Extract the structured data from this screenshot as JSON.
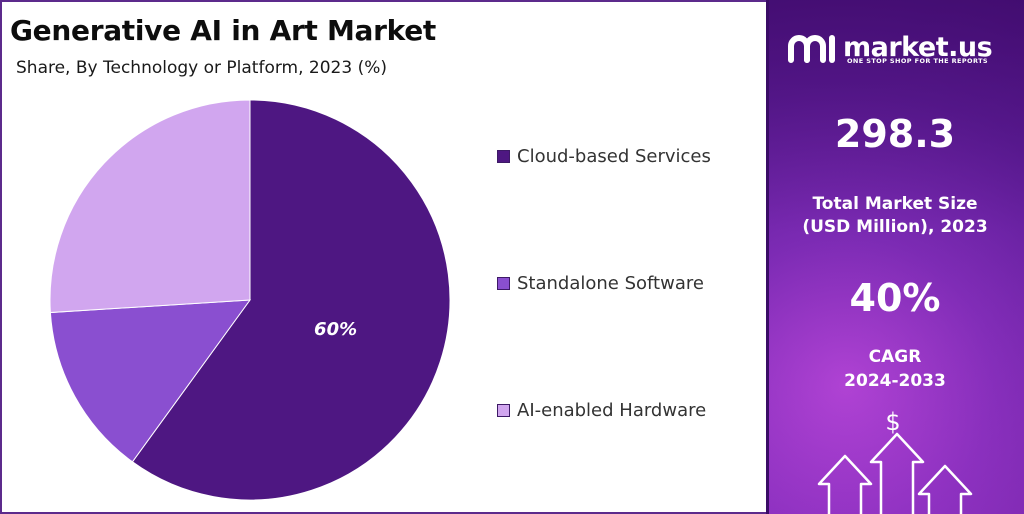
{
  "chart_data": {
    "type": "pie",
    "title": "Generative AI in Art Market",
    "subtitle": "Share, By Technology or Platform, 2023 (%)",
    "slices": [
      {
        "label": "Cloud-based Services",
        "value": 60,
        "color": "#4e1782",
        "data_label": "60%"
      },
      {
        "label": "Standalone Software",
        "value": 14,
        "color": "#8a4fd0",
        "data_label": ""
      },
      {
        "label": "AI-enabled Hardware",
        "value": 26,
        "color": "#d1a6ef",
        "data_label": ""
      }
    ],
    "legend_position": "right"
  },
  "sidebar": {
    "brand": "market.us",
    "tagline": "ONE STOP SHOP FOR THE REPORTS",
    "market_size_value": "298.3",
    "market_size_label_line1": "Total Market Size",
    "market_size_label_line2": "(USD Million), 2023",
    "cagr_value": "40%",
    "cagr_label_line1": "CAGR",
    "cagr_label_line2": "2024-2033",
    "currency_symbol": "$"
  }
}
